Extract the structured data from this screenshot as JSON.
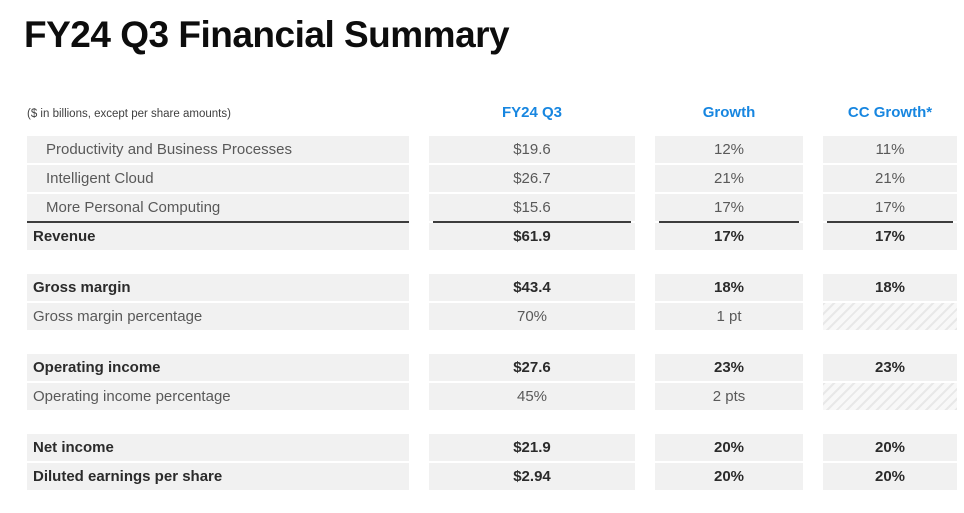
{
  "title": "FY24 Q3 Financial Summary",
  "note": "($ in billions, except per share amounts)",
  "colors": {
    "accent_blue": "#1786e0",
    "row_background": "#f1f1f1",
    "total_rule": "#3d3d3d",
    "regular_text": "#595959",
    "bold_text": "#2b2b2b"
  },
  "columns": [
    {
      "label": "FY24 Q3"
    },
    {
      "label": "Growth"
    },
    {
      "label": "CC Growth*"
    }
  ],
  "table": {
    "rows": [
      {
        "label": "Productivity and Business Processes",
        "indent": true,
        "bold": false,
        "section_start": false,
        "total_line": false,
        "cells": [
          {
            "text": "$19.6"
          },
          {
            "text": "12%"
          },
          {
            "text": "11%"
          }
        ]
      },
      {
        "label": "Intelligent Cloud",
        "indent": true,
        "bold": false,
        "section_start": false,
        "total_line": false,
        "cells": [
          {
            "text": "$26.7"
          },
          {
            "text": "21%"
          },
          {
            "text": "21%"
          }
        ]
      },
      {
        "label": "More Personal Computing",
        "indent": true,
        "bold": false,
        "section_start": false,
        "total_line": false,
        "cells": [
          {
            "text": "$15.6"
          },
          {
            "text": "17%"
          },
          {
            "text": "17%"
          }
        ]
      },
      {
        "label": "Revenue",
        "indent": false,
        "bold": true,
        "section_start": false,
        "total_line": true,
        "cells": [
          {
            "text": "$61.9"
          },
          {
            "text": "17%"
          },
          {
            "text": "17%"
          }
        ]
      },
      {
        "label": "Gross margin",
        "indent": false,
        "bold": true,
        "section_start": true,
        "total_line": false,
        "cells": [
          {
            "text": "$43.4"
          },
          {
            "text": "18%"
          },
          {
            "text": "18%"
          }
        ]
      },
      {
        "label": "Gross margin percentage",
        "indent": false,
        "bold": false,
        "section_start": false,
        "total_line": false,
        "cells": [
          {
            "text": "70%"
          },
          {
            "text": "1 pt"
          },
          {
            "hatch": true
          }
        ]
      },
      {
        "label": "Operating income",
        "indent": false,
        "bold": true,
        "section_start": true,
        "total_line": false,
        "cells": [
          {
            "text": "$27.6"
          },
          {
            "text": "23%"
          },
          {
            "text": "23%"
          }
        ]
      },
      {
        "label": "Operating income percentage",
        "indent": false,
        "bold": false,
        "section_start": false,
        "total_line": false,
        "cells": [
          {
            "text": "45%"
          },
          {
            "text": "2 pts"
          },
          {
            "hatch": true
          }
        ]
      },
      {
        "label": "Net income",
        "indent": false,
        "bold": true,
        "section_start": true,
        "total_line": false,
        "cells": [
          {
            "text": "$21.9"
          },
          {
            "text": "20%"
          },
          {
            "text": "20%"
          }
        ]
      },
      {
        "label": "Diluted earnings per share",
        "indent": false,
        "bold": true,
        "section_start": false,
        "total_line": false,
        "cells": [
          {
            "text": "$2.94"
          },
          {
            "text": "20%"
          },
          {
            "text": "20%"
          }
        ]
      }
    ]
  }
}
